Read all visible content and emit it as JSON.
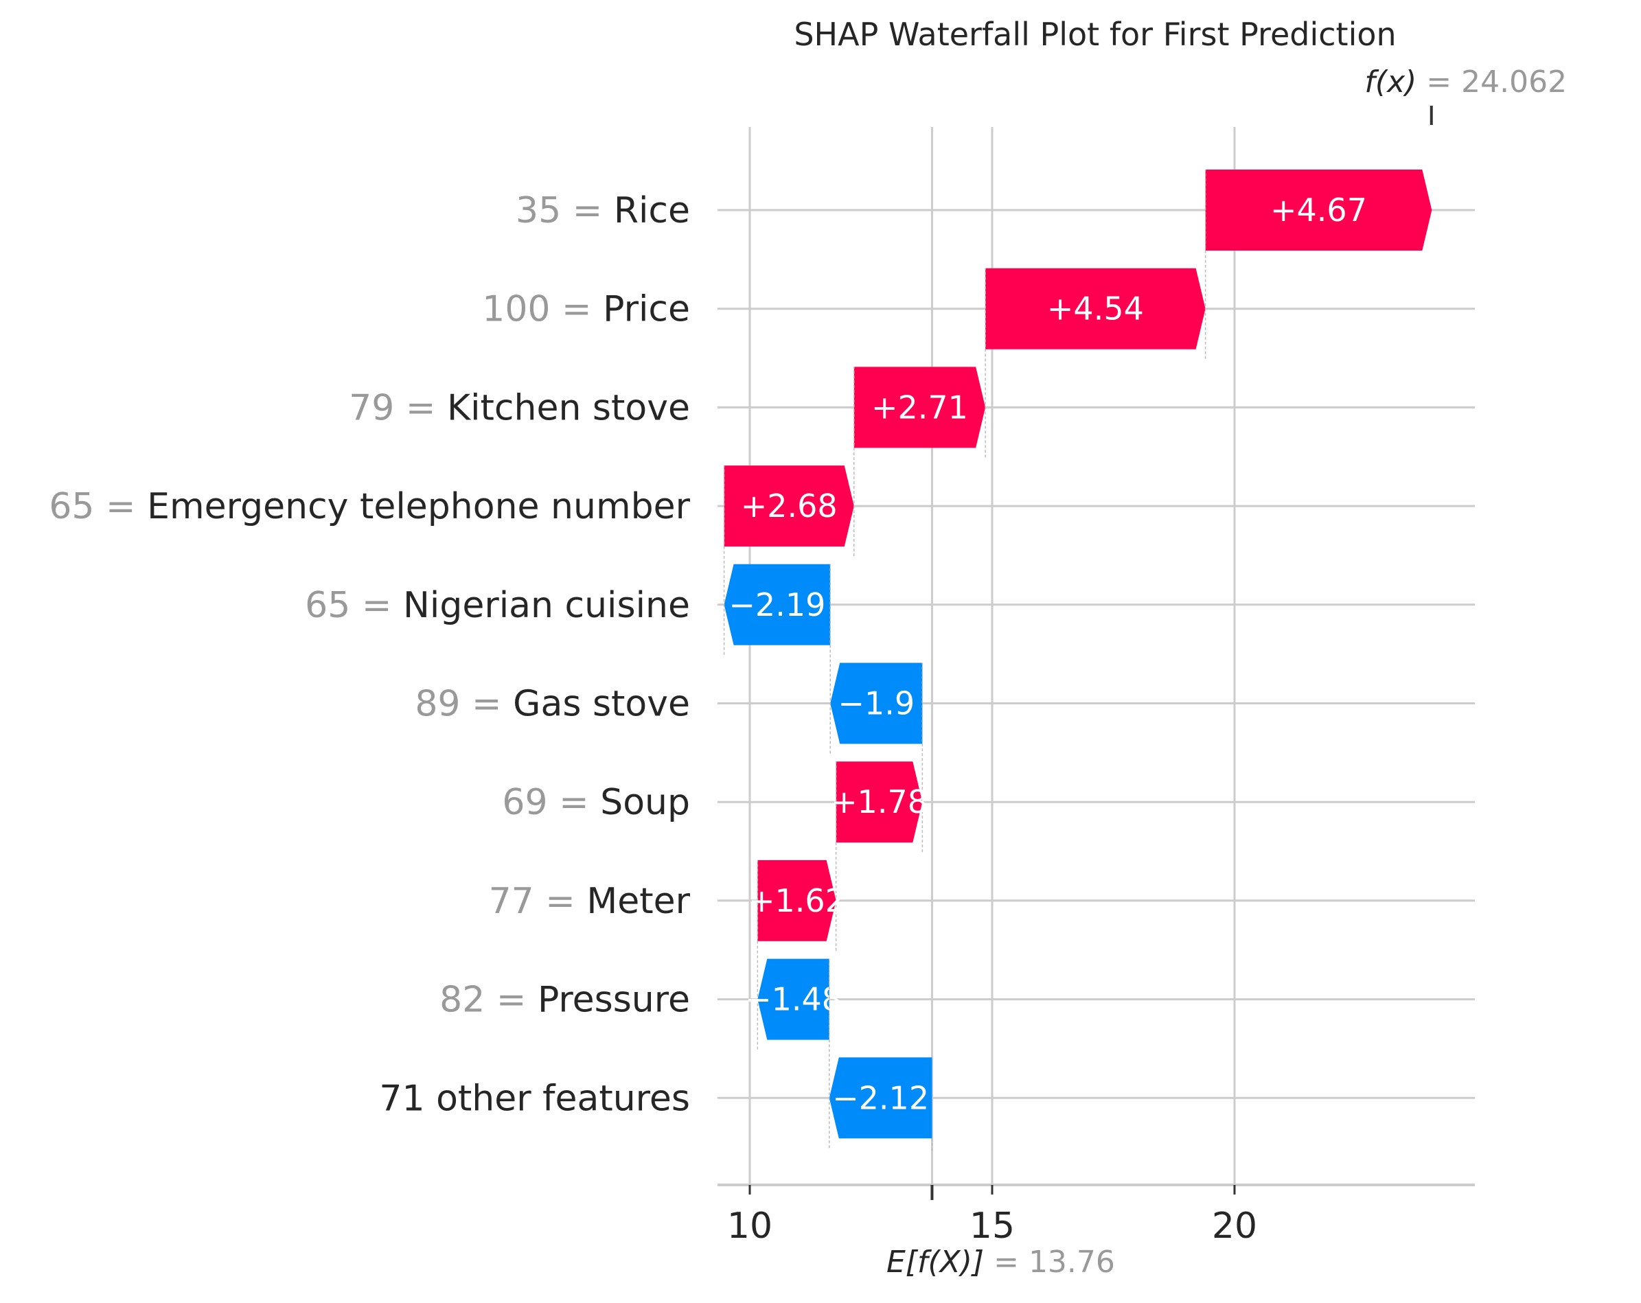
{
  "chart_data": {
    "type": "waterfall",
    "title": "SHAP Waterfall Plot for First Prediction",
    "base_value": 13.76,
    "base_value_label": "13.76",
    "output_value": 24.062,
    "output_value_label": "24.062",
    "base_label_var": "E[f(X)]",
    "output_label_var": "f(x)",
    "xlim": [
      9.4,
      24.9
    ],
    "xticks": [
      10,
      15,
      20
    ],
    "grid": true,
    "colors": {
      "positive": "#ff0051",
      "negative": "#008bfb",
      "grid": "#cccccc",
      "value_text": "#999999"
    },
    "features": [
      {
        "value": "35",
        "name": "Rice",
        "shap": 4.67,
        "label": "+4.67"
      },
      {
        "value": "100",
        "name": "Price",
        "shap": 4.54,
        "label": "+4.54"
      },
      {
        "value": "79",
        "name": "Kitchen stove",
        "shap": 2.71,
        "label": "+2.71"
      },
      {
        "value": "65",
        "name": "Emergency telephone number",
        "shap": 2.68,
        "label": "+2.68"
      },
      {
        "value": "65",
        "name": "Nigerian cuisine",
        "shap": -2.19,
        "label": "−2.19"
      },
      {
        "value": "89",
        "name": "Gas stove",
        "shap": -1.9,
        "label": "−1.9"
      },
      {
        "value": "69",
        "name": "Soup",
        "shap": 1.78,
        "label": "+1.78"
      },
      {
        "value": "77",
        "name": "Meter",
        "shap": 1.62,
        "label": "+1.62"
      },
      {
        "value": "82",
        "name": "Pressure",
        "shap": -1.48,
        "label": "−1.48"
      },
      {
        "value": "",
        "name": "71 other features",
        "shap": -2.12,
        "label": "−2.12"
      }
    ]
  }
}
